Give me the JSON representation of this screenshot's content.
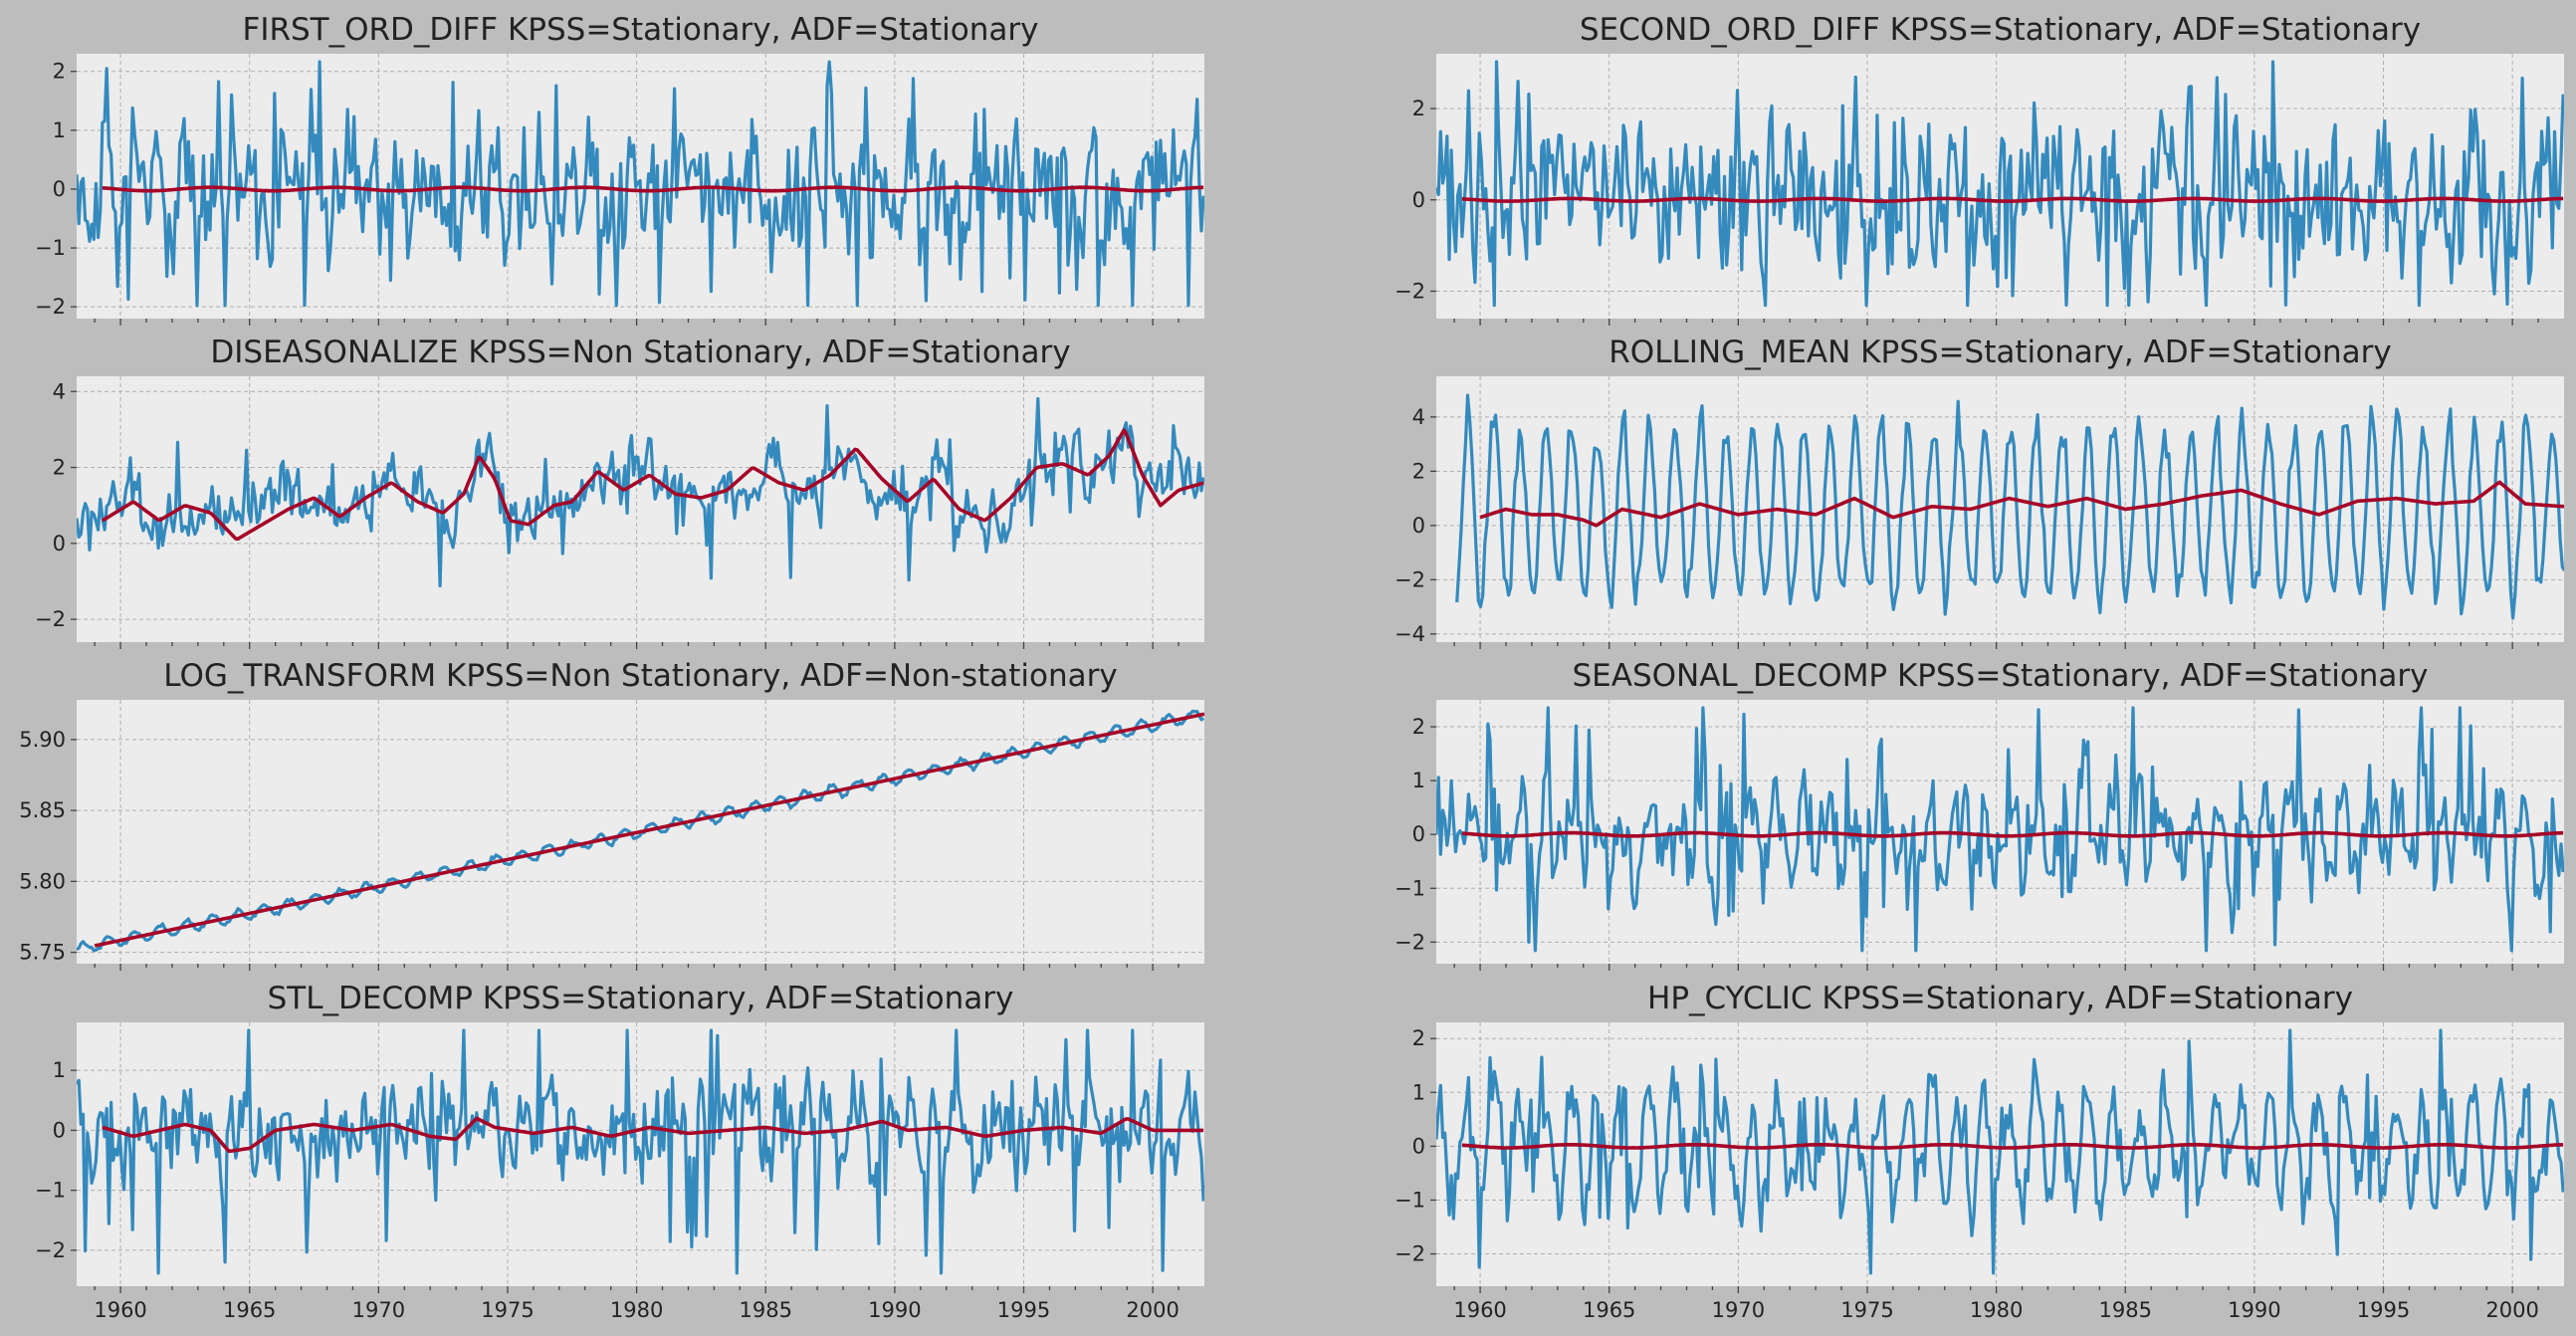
{
  "figure": {
    "background": "#bdbdbd",
    "axes_background": "#ececec",
    "grid_color": "#b0b0b0"
  },
  "colors": {
    "series": "#348abd",
    "rolling_mean": "#a60628"
  },
  "chart_data": [
    {
      "type": "line",
      "title": "FIRST_ORD_DIFF KPSS=Stationary, ADF=Stationary",
      "xlim": [
        1958.3,
        2002.0
      ],
      "ylim": [
        -2.2,
        2.3
      ],
      "yticks": [
        -2,
        -1,
        0,
        1,
        2
      ],
      "show_xticklabels": false,
      "pattern": "noise",
      "level": 0,
      "amp": 0.55,
      "seasonal_amp": 0.35,
      "spikes": 0.09,
      "x_start": 1958.3,
      "mean_start": 1959.3,
      "series": [
        {
          "values_summary": "monthly first difference, fluctuates around 0 within -2.1..2.2"
        },
        {
          "values_summary": "12-month rolling mean, ~0"
        }
      ],
      "grid": true,
      "legend": "none"
    },
    {
      "type": "line",
      "title": "SECOND_ORD_DIFF KPSS=Stationary, ADF=Stationary",
      "xlim": [
        1958.3,
        2002.0
      ],
      "ylim": [
        -2.6,
        3.2
      ],
      "yticks": [
        -2,
        0,
        2
      ],
      "show_xticklabels": false,
      "pattern": "noise",
      "level": 0,
      "amp": 0.8,
      "seasonal_amp": 0.25,
      "spikes": 0.08,
      "x_start": 1958.3,
      "mean_start": 1959.3,
      "series": [
        {
          "values_summary": "monthly second difference, fluctuates around 0 within -2.4..3.1"
        },
        {
          "values_summary": "12-month rolling mean, ~0"
        }
      ],
      "grid": true,
      "legend": "none"
    },
    {
      "type": "line",
      "title": "DISEASONALIZE KPSS=Non Stationary, ADF=Stationary",
      "xlim": [
        1958.3,
        2002.0
      ],
      "ylim": [
        -2.6,
        4.4
      ],
      "yticks": [
        -2,
        0,
        2,
        4
      ],
      "show_xticklabels": false,
      "pattern": "wander",
      "level": 1.1,
      "amp": 0.55,
      "seasonal_amp": 0.2,
      "spikes": 0.05,
      "x_start": 1958.3,
      "mean_start": 1959.3,
      "mean_points": [
        [
          1959.3,
          0.6
        ],
        [
          1960.5,
          1.1
        ],
        [
          1961.5,
          0.6
        ],
        [
          1962.5,
          1.0
        ],
        [
          1963.5,
          0.8
        ],
        [
          1964.5,
          0.1
        ],
        [
          1965.5,
          0.5
        ],
        [
          1966.5,
          0.9
        ],
        [
          1967.5,
          1.2
        ],
        [
          1968.5,
          0.7
        ],
        [
          1969.5,
          1.2
        ],
        [
          1970.5,
          1.6
        ],
        [
          1971.5,
          1.1
        ],
        [
          1972.5,
          0.8
        ],
        [
          1973.3,
          1.3
        ],
        [
          1973.9,
          2.3
        ],
        [
          1974.5,
          1.7
        ],
        [
          1975.1,
          0.6
        ],
        [
          1975.8,
          0.5
        ],
        [
          1976.8,
          1.0
        ],
        [
          1977.5,
          1.1
        ],
        [
          1978.5,
          1.9
        ],
        [
          1979.5,
          1.4
        ],
        [
          1980.5,
          1.8
        ],
        [
          1981.5,
          1.3
        ],
        [
          1982.5,
          1.2
        ],
        [
          1983.5,
          1.4
        ],
        [
          1984.5,
          2.0
        ],
        [
          1985.5,
          1.6
        ],
        [
          1986.5,
          1.4
        ],
        [
          1987.5,
          1.8
        ],
        [
          1988.5,
          2.5
        ],
        [
          1989.5,
          1.7
        ],
        [
          1990.5,
          1.1
        ],
        [
          1991.5,
          1.7
        ],
        [
          1992.5,
          0.9
        ],
        [
          1993.5,
          0.6
        ],
        [
          1994.5,
          1.2
        ],
        [
          1995.5,
          2.0
        ],
        [
          1996.5,
          2.1
        ],
        [
          1997.5,
          1.8
        ],
        [
          1998.3,
          2.3
        ],
        [
          1998.9,
          3.0
        ],
        [
          1999.6,
          1.8
        ],
        [
          2000.3,
          1.0
        ],
        [
          2001.0,
          1.4
        ],
        [
          2002.0,
          1.6
        ]
      ],
      "series": [
        {
          "values_summary": "deseasonalized series wandering between -2.3 and 4.1"
        },
        {
          "values_summary": "12-month rolling mean, 0..3"
        }
      ],
      "grid": true,
      "legend": "none"
    },
    {
      "type": "line",
      "title": "ROLLING_MEAN KPSS=Stationary, ADF=Stationary",
      "xlim": [
        1958.3,
        2002.0
      ],
      "ylim": [
        -4.3,
        5.5
      ],
      "yticks": [
        -4,
        -2,
        0,
        2,
        4
      ],
      "show_xticklabels": false,
      "pattern": "seasonal",
      "level": 0.5,
      "amp": 0.3,
      "seasonal_amp": 3.2,
      "spikes": 0.0,
      "x_start": 1959.1,
      "mean_start": 1960.0,
      "mean_points": [
        [
          1960.0,
          0.3
        ],
        [
          1961.0,
          0.6
        ],
        [
          1962.0,
          0.4
        ],
        [
          1963.0,
          0.4
        ],
        [
          1964.0,
          0.2
        ],
        [
          1964.5,
          0.0
        ],
        [
          1965.5,
          0.6
        ],
        [
          1967.0,
          0.3
        ],
        [
          1968.5,
          0.8
        ],
        [
          1970.0,
          0.4
        ],
        [
          1971.5,
          0.6
        ],
        [
          1973.0,
          0.4
        ],
        [
          1974.5,
          1.0
        ],
        [
          1976.0,
          0.3
        ],
        [
          1977.5,
          0.7
        ],
        [
          1979.0,
          0.6
        ],
        [
          1980.5,
          1.0
        ],
        [
          1982.0,
          0.7
        ],
        [
          1983.5,
          1.0
        ],
        [
          1985.0,
          0.6
        ],
        [
          1986.5,
          0.8
        ],
        [
          1988.0,
          1.1
        ],
        [
          1989.5,
          1.3
        ],
        [
          1991.0,
          0.8
        ],
        [
          1992.5,
          0.4
        ],
        [
          1994.0,
          0.9
        ],
        [
          1995.5,
          1.0
        ],
        [
          1997.0,
          0.8
        ],
        [
          1998.5,
          0.9
        ],
        [
          1999.5,
          1.6
        ],
        [
          2000.5,
          0.8
        ],
        [
          2002.0,
          0.7
        ]
      ],
      "series": [
        {
          "values_summary": "strong annual cycle, amplitude about -3.8..5.2"
        },
        {
          "values_summary": "12-month rolling mean, 0..1.6"
        }
      ],
      "grid": true,
      "legend": "none"
    },
    {
      "type": "line",
      "title": "LOG_TRANSFORM KPSS=Non Stationary, ADF=Non-stationary",
      "xlim": [
        1958.3,
        2002.0
      ],
      "ylim": [
        5.742,
        5.928
      ],
      "yticks": [
        5.75,
        5.8,
        5.85,
        5.9
      ],
      "show_xticklabels": false,
      "pattern": "trend",
      "trend_start": 5.752,
      "trend_end": 5.918,
      "amp": 0.0008,
      "seasonal_amp": 0.004,
      "spikes": 0.0,
      "x_start": 1958.3,
      "mean_start": 1959.0,
      "series": [
        {
          "values_summary": "log series rising from 5.75 to 5.92 with small annual cycle"
        },
        {
          "values_summary": "12-month rolling mean, 5.752..5.918"
        }
      ],
      "grid": true,
      "legend": "none"
    },
    {
      "type": "line",
      "title": "SEASONAL_DECOMP KPSS=Stationary, ADF=Stationary",
      "xlim": [
        1958.3,
        2002.0
      ],
      "ylim": [
        -2.4,
        2.5
      ],
      "yticks": [
        -2,
        -1,
        0,
        1,
        2
      ],
      "show_xticklabels": false,
      "pattern": "noise",
      "level": 0,
      "amp": 0.45,
      "seasonal_amp": 0.55,
      "spikes": 0.07,
      "x_start": 1958.3,
      "mean_start": 1959.3,
      "series": [
        {
          "values_summary": "seasonal decomposition residual around 0, range -2.3..2.3"
        },
        {
          "values_summary": "12-month rolling mean, ~0"
        }
      ],
      "grid": true,
      "legend": "none"
    },
    {
      "type": "line",
      "title": "STL_DECOMP KPSS=Stationary, ADF=Stationary",
      "xlim": [
        1958.3,
        2002.0
      ],
      "ylim": [
        -2.6,
        1.8
      ],
      "yticks": [
        -2,
        -1,
        0,
        1
      ],
      "show_xticklabels": true,
      "xticks": [
        1960,
        1965,
        1970,
        1975,
        1980,
        1985,
        1990,
        1995,
        2000
      ],
      "pattern": "noise",
      "level": 0,
      "amp": 0.4,
      "seasonal_amp": 0.25,
      "spikes": 0.08,
      "x_start": 1958.3,
      "mean_start": 1959.3,
      "mean_points": [
        [
          1959.3,
          0.05
        ],
        [
          1960.5,
          -0.1
        ],
        [
          1961.5,
          0.0
        ],
        [
          1962.5,
          0.1
        ],
        [
          1963.5,
          0.0
        ],
        [
          1964.2,
          -0.35
        ],
        [
          1965.0,
          -0.3
        ],
        [
          1966.0,
          0.0
        ],
        [
          1967.5,
          0.1
        ],
        [
          1969.0,
          0.0
        ],
        [
          1970.5,
          0.1
        ],
        [
          1972.0,
          -0.1
        ],
        [
          1973.0,
          -0.15
        ],
        [
          1973.8,
          0.2
        ],
        [
          1974.5,
          0.05
        ],
        [
          1976.0,
          -0.05
        ],
        [
          1977.5,
          0.05
        ],
        [
          1979.0,
          -0.1
        ],
        [
          1980.5,
          0.05
        ],
        [
          1982.0,
          -0.05
        ],
        [
          1983.5,
          0.0
        ],
        [
          1985.0,
          0.05
        ],
        [
          1986.5,
          -0.05
        ],
        [
          1988.0,
          0.0
        ],
        [
          1989.5,
          0.15
        ],
        [
          1990.5,
          0.0
        ],
        [
          1992.0,
          0.05
        ],
        [
          1993.5,
          -0.1
        ],
        [
          1995.0,
          0.0
        ],
        [
          1996.5,
          0.05
        ],
        [
          1998.0,
          -0.05
        ],
        [
          1999.0,
          0.2
        ],
        [
          2000.0,
          0.0
        ],
        [
          2002.0,
          0.0
        ]
      ],
      "series": [
        {
          "values_summary": "STL residual around 0, range -2.5..1.7"
        },
        {
          "values_summary": "12-month rolling mean, -0.35..0.2"
        }
      ],
      "grid": true,
      "legend": "none"
    },
    {
      "type": "line",
      "title": "HP_CYCLIC KPSS=Stationary, ADF=Stationary",
      "xlim": [
        1958.3,
        2002.0
      ],
      "ylim": [
        -2.6,
        2.3
      ],
      "yticks": [
        -2,
        -1,
        0,
        1,
        2
      ],
      "show_xticklabels": true,
      "xticks": [
        1960,
        1965,
        1970,
        1975,
        1980,
        1985,
        1990,
        1995,
        2000
      ],
      "pattern": "noise",
      "level": 0,
      "amp": 0.35,
      "seasonal_amp": 0.9,
      "spikes": 0.05,
      "x_start": 1958.3,
      "mean_start": 1959.3,
      "series": [
        {
          "values_summary": "HP filter cyclic component around 0, range -2.5..2.2"
        },
        {
          "values_summary": "12-month rolling mean, ~0"
        }
      ],
      "grid": true,
      "legend": "none"
    }
  ]
}
